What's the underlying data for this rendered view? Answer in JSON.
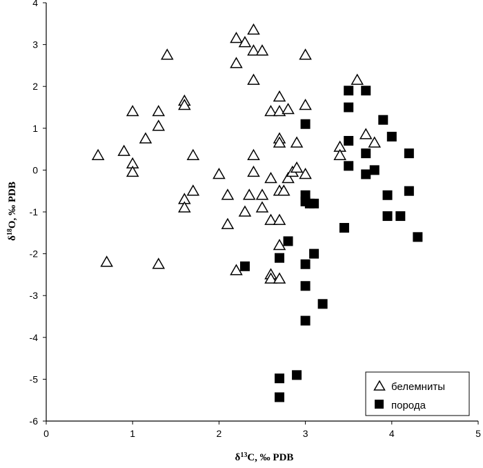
{
  "chart_data": {
    "type": "scatter",
    "title": "",
    "xlabel": "δ13C, ‰ PDB",
    "xlabel_parts": {
      "delta": "δ",
      "sup": "13",
      "rest": "C, ‰ PDB"
    },
    "ylabel": "δ18O, ‰ PDB",
    "ylabel_parts": {
      "delta": "δ",
      "sup": "18",
      "rest": "O, ‰ PDB"
    },
    "xlim": [
      0,
      5
    ],
    "ylim": [
      -6,
      4
    ],
    "x_ticks": [
      "0",
      "1",
      "2",
      "3",
      "4",
      "5"
    ],
    "y_ticks": [
      "4",
      "3",
      "2",
      "1",
      "0",
      "-1",
      "-2",
      "-3",
      "-4",
      "-5",
      "-6"
    ],
    "grid": false,
    "legend_position": "bottom-right",
    "series": [
      {
        "name": "белемниты",
        "marker": "open-triangle",
        "points": [
          [
            0.6,
            0.35
          ],
          [
            0.7,
            -2.2
          ],
          [
            0.9,
            0.45
          ],
          [
            1.0,
            1.4
          ],
          [
            1.0,
            0.15
          ],
          [
            1.0,
            -0.05
          ],
          [
            1.15,
            0.75
          ],
          [
            1.3,
            1.4
          ],
          [
            1.3,
            1.05
          ],
          [
            1.3,
            -2.25
          ],
          [
            1.4,
            2.75
          ],
          [
            1.6,
            1.65
          ],
          [
            1.6,
            1.55
          ],
          [
            1.6,
            -0.7
          ],
          [
            1.6,
            -0.9
          ],
          [
            1.7,
            0.35
          ],
          [
            1.7,
            -0.5
          ],
          [
            2.0,
            -0.1
          ],
          [
            2.1,
            -0.6
          ],
          [
            2.1,
            -1.3
          ],
          [
            2.2,
            3.15
          ],
          [
            2.2,
            2.55
          ],
          [
            2.2,
            -2.4
          ],
          [
            2.3,
            3.05
          ],
          [
            2.3,
            -1.0
          ],
          [
            2.35,
            -0.6
          ],
          [
            2.4,
            3.35
          ],
          [
            2.4,
            2.85
          ],
          [
            2.4,
            2.15
          ],
          [
            2.4,
            0.35
          ],
          [
            2.4,
            -0.05
          ],
          [
            2.5,
            2.85
          ],
          [
            2.5,
            -0.6
          ],
          [
            2.5,
            -0.9
          ],
          [
            2.6,
            1.4
          ],
          [
            2.6,
            -0.2
          ],
          [
            2.6,
            -1.2
          ],
          [
            2.6,
            -2.5
          ],
          [
            2.6,
            -2.6
          ],
          [
            2.7,
            1.75
          ],
          [
            2.7,
            1.4
          ],
          [
            2.7,
            0.75
          ],
          [
            2.7,
            0.65
          ],
          [
            2.7,
            -0.5
          ],
          [
            2.7,
            -1.2
          ],
          [
            2.7,
            -1.8
          ],
          [
            2.7,
            -2.6
          ],
          [
            2.75,
            -0.5
          ],
          [
            2.8,
            1.45
          ],
          [
            2.8,
            -0.2
          ],
          [
            2.85,
            -0.05
          ],
          [
            2.9,
            0.65
          ],
          [
            2.9,
            0.05
          ],
          [
            3.0,
            2.75
          ],
          [
            3.0,
            1.55
          ],
          [
            3.0,
            -0.1
          ],
          [
            3.4,
            0.55
          ],
          [
            3.4,
            0.35
          ],
          [
            3.6,
            2.15
          ],
          [
            3.7,
            0.85
          ],
          [
            3.8,
            0.65
          ]
        ]
      },
      {
        "name": "порода",
        "marker": "filled-square",
        "points": [
          [
            2.3,
            -2.3
          ],
          [
            2.7,
            -2.1
          ],
          [
            2.7,
            -4.98
          ],
          [
            2.7,
            -5.43
          ],
          [
            2.8,
            -1.7
          ],
          [
            2.9,
            -4.9
          ],
          [
            3.0,
            1.1
          ],
          [
            3.0,
            -0.6
          ],
          [
            3.0,
            -0.75
          ],
          [
            3.0,
            -2.25
          ],
          [
            3.0,
            -2.77
          ],
          [
            3.0,
            -3.6
          ],
          [
            3.05,
            -0.8
          ],
          [
            3.1,
            -0.8
          ],
          [
            3.1,
            -2.0
          ],
          [
            3.2,
            -3.2
          ],
          [
            3.45,
            -1.38
          ],
          [
            3.5,
            1.9
          ],
          [
            3.5,
            1.5
          ],
          [
            3.5,
            0.7
          ],
          [
            3.5,
            0.1
          ],
          [
            3.7,
            1.9
          ],
          [
            3.7,
            0.4
          ],
          [
            3.7,
            -0.1
          ],
          [
            3.8,
            0.0
          ],
          [
            3.9,
            1.2
          ],
          [
            3.95,
            -0.6
          ],
          [
            3.95,
            -1.1
          ],
          [
            4.0,
            0.8
          ],
          [
            4.1,
            -1.1
          ],
          [
            4.2,
            0.4
          ],
          [
            4.2,
            -0.5
          ],
          [
            4.3,
            -1.6
          ]
        ]
      }
    ]
  },
  "legend": {
    "items": [
      {
        "label": "белемниты"
      },
      {
        "label": "порода"
      }
    ]
  }
}
